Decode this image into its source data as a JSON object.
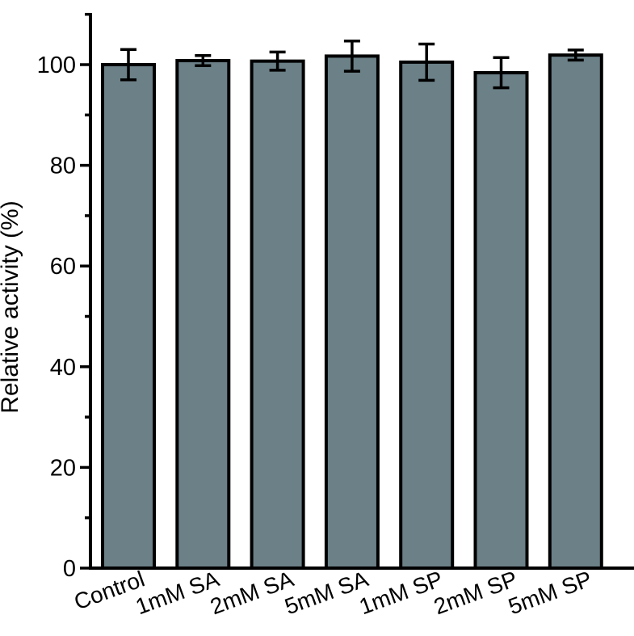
{
  "chart_data": {
    "type": "bar",
    "title": "",
    "xlabel": "",
    "ylabel": "Relative activity (%)",
    "ylim": [
      0,
      112
    ],
    "y_major_ticks": [
      0,
      20,
      40,
      60,
      80,
      100
    ],
    "y_minor_step": 10,
    "grid": false,
    "legend": "none",
    "categories": [
      "Control",
      "1mM SA",
      "2mM SA",
      "5mM SA",
      "1mM SP",
      "2mM SP",
      "5mM SP"
    ],
    "values": [
      100.0,
      100.8,
      100.7,
      101.7,
      100.5,
      98.4,
      101.9
    ],
    "errors": [
      3.0,
      1.0,
      1.8,
      3.0,
      3.6,
      3.0,
      1.0
    ],
    "colors": {
      "bar_fill": "#6b8087",
      "bar_edge": "#000000",
      "axis": "#000000"
    }
  }
}
